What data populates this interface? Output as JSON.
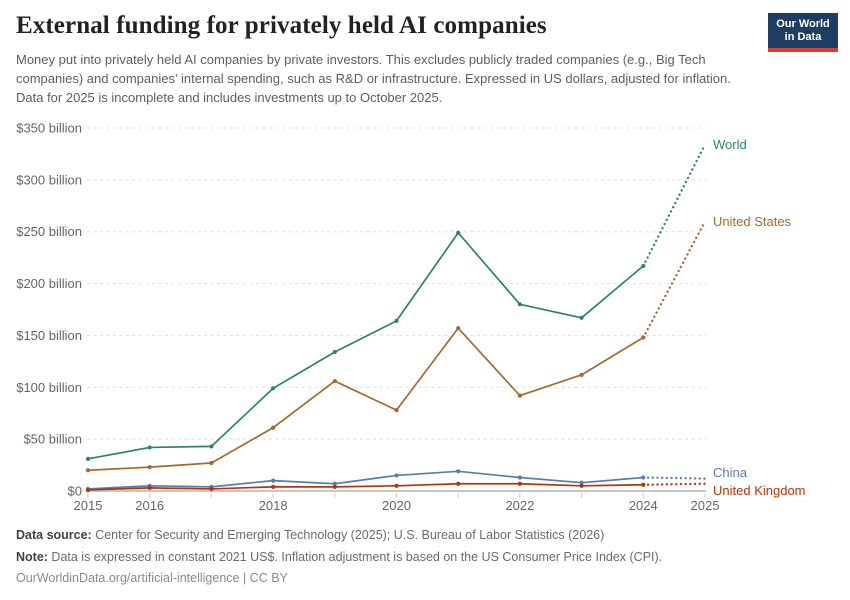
{
  "header": {
    "title": "External funding for privately held AI companies",
    "subtitle": "Money put into privately held AI companies by private investors. This excludes publicly traded companies (e.g., Big Tech companies) and companies’ internal spending, such as R&D or infrastructure. Expressed in US dollars, adjusted for inflation. Data for 2025 is incomplete and includes investments up to October 2025.",
    "logo": {
      "line1": "Our World",
      "line2": "in Data"
    }
  },
  "chart_data": {
    "type": "line",
    "title": "External funding for privately held AI companies",
    "x": [
      2015,
      2016,
      2017,
      2018,
      2019,
      2020,
      2021,
      2022,
      2023,
      2024,
      2025
    ],
    "x_tick_labels": [
      "2015",
      "2016",
      "2018",
      "2020",
      "2022",
      "2024",
      "2025"
    ],
    "xlim": [
      2015,
      2025
    ],
    "ylim": [
      0,
      350
    ],
    "y_unit": "US$ billion",
    "y_ticks": [
      {
        "value": 0,
        "label": "$0"
      },
      {
        "value": 50,
        "label": "$50 billion"
      },
      {
        "value": 100,
        "label": "$100 billion"
      },
      {
        "value": 150,
        "label": "$150 billion"
      },
      {
        "value": 200,
        "label": "$200 billion"
      },
      {
        "value": 250,
        "label": "$250 billion"
      },
      {
        "value": 300,
        "label": "$300 billion"
      },
      {
        "value": 350,
        "label": "$350 billion"
      }
    ],
    "grid": "horizontal-dashed",
    "legend_position": "end-labels-right",
    "projection_start_year": 2024,
    "series": [
      {
        "name": "World",
        "color": "#2C8465",
        "label_dy": 0,
        "values": [
          31,
          42,
          43,
          99,
          134,
          164,
          249,
          180,
          167,
          217,
          334
        ]
      },
      {
        "name": "United States",
        "color": "#A36A30",
        "label_dy": 0,
        "values": [
          20,
          23,
          27,
          61,
          106,
          78,
          157,
          92,
          112,
          148,
          260
        ]
      },
      {
        "name": "China",
        "color": "#5B7CA8",
        "label_dy": -6,
        "values": [
          2,
          5,
          4,
          10,
          7,
          15,
          19,
          13,
          8,
          13,
          12
        ]
      },
      {
        "name": "United Kingdom",
        "color": "#B13507",
        "label_dy": 7,
        "values": [
          1,
          3,
          2,
          4,
          4,
          5,
          7,
          7,
          5,
          6,
          7
        ]
      }
    ]
  },
  "footer": {
    "source_label": "Data source:",
    "source_text": " Center for Security and Emerging Technology (2025); U.S. Bureau of Labor Statistics (2026)",
    "note_label": "Note:",
    "note_text": " Data is expressed in constant 2021 US$. Inflation adjustment is based on the US Consumer Price Index (CPI).",
    "citation": "OurWorldinData.org/artificial-intelligence | CC BY"
  }
}
